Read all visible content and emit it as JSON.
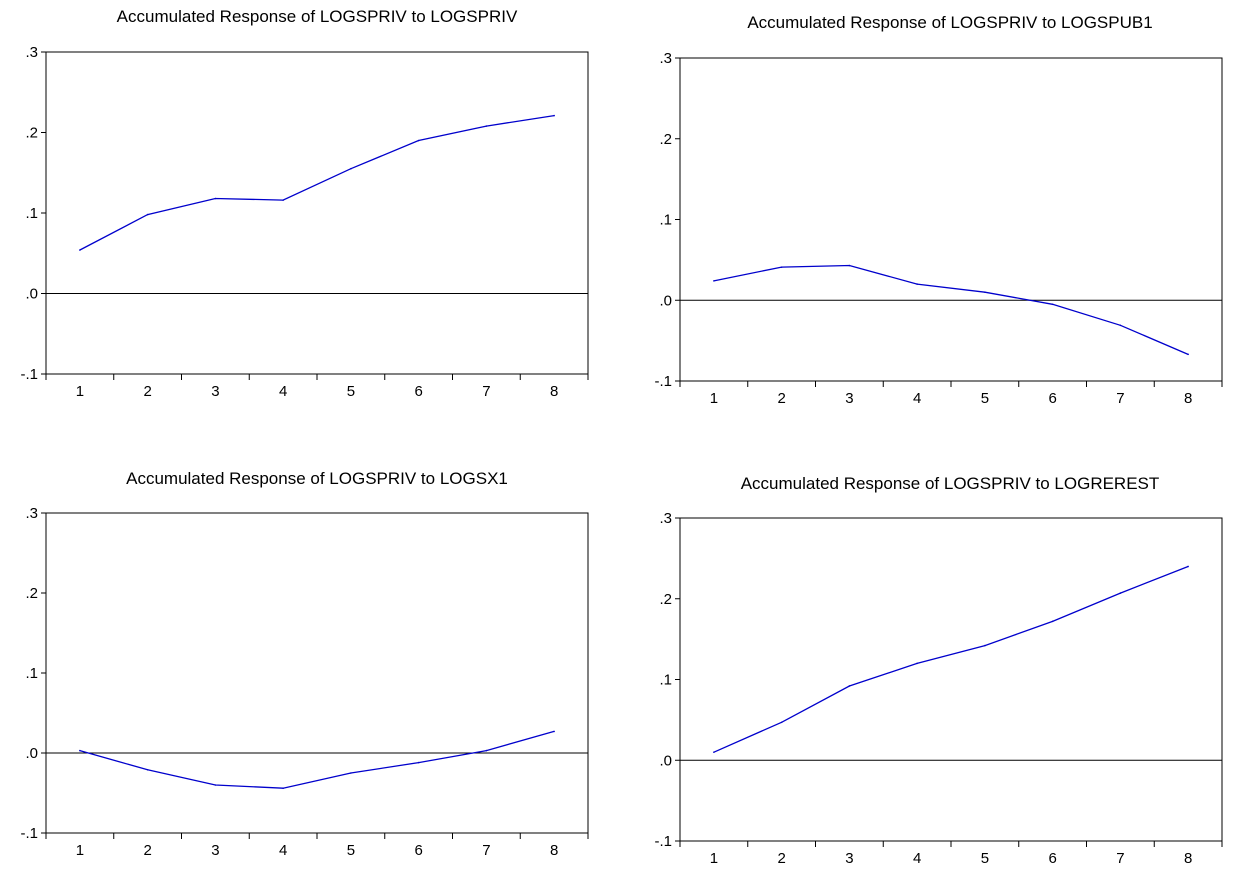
{
  "chart_data": [
    {
      "type": "line",
      "title": "Accumulated Response of LOGSPRIV to LOGSPRIV",
      "categories": [
        "1",
        "2",
        "3",
        "4",
        "5",
        "6",
        "7",
        "8"
      ],
      "y_ticks": [
        "-.1",
        ".0",
        ".1",
        ".2",
        ".3"
      ],
      "ylim": [
        -0.1,
        0.3
      ],
      "series": [
        {
          "values": [
            0.054,
            0.098,
            0.118,
            0.116,
            0.155,
            0.19,
            0.208,
            0.221
          ]
        }
      ],
      "grid": false,
      "zero_line": true,
      "line_color": "#0000cc"
    },
    {
      "type": "line",
      "title": "Accumulated Response of LOGSPRIV to LOGSPUB1",
      "categories": [
        "1",
        "2",
        "3",
        "4",
        "5",
        "6",
        "7",
        "8"
      ],
      "y_ticks": [
        "-.1",
        ".0",
        ".1",
        ".2",
        ".3"
      ],
      "ylim": [
        -0.1,
        0.3
      ],
      "series": [
        {
          "values": [
            0.024,
            0.041,
            0.043,
            0.02,
            0.01,
            -0.005,
            -0.031,
            -0.067
          ]
        }
      ],
      "grid": false,
      "zero_line": true,
      "line_color": "#0000cc"
    },
    {
      "type": "line",
      "title": "Accumulated Response of LOGSPRIV to LOGSX1",
      "categories": [
        "1",
        "2",
        "3",
        "4",
        "5",
        "6",
        "7",
        "8"
      ],
      "y_ticks": [
        "-.1",
        ".0",
        ".1",
        ".2",
        ".3"
      ],
      "ylim": [
        -0.1,
        0.3
      ],
      "series": [
        {
          "values": [
            0.003,
            -0.021,
            -0.04,
            -0.044,
            -0.025,
            -0.012,
            0.003,
            0.027
          ]
        }
      ],
      "grid": false,
      "zero_line": true,
      "line_color": "#0000cc"
    },
    {
      "type": "line",
      "title": "Accumulated Response of LOGSPRIV to LOGREREST",
      "categories": [
        "1",
        "2",
        "3",
        "4",
        "5",
        "6",
        "7",
        "8"
      ],
      "y_ticks": [
        "-.1",
        ".0",
        ".1",
        ".2",
        ".3"
      ],
      "ylim": [
        -0.1,
        0.3
      ],
      "series": [
        {
          "values": [
            0.01,
            0.047,
            0.092,
            0.12,
            0.142,
            0.172,
            0.207,
            0.24
          ]
        }
      ],
      "grid": false,
      "zero_line": true,
      "line_color": "#0000cc"
    }
  ]
}
